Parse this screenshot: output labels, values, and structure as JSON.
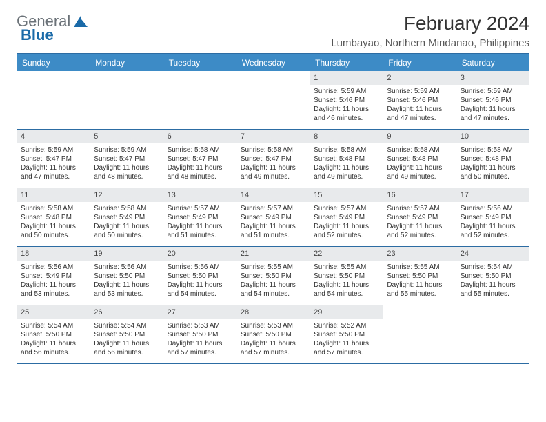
{
  "logo": {
    "text1": "General",
    "text2": "Blue",
    "icon_color": "#1a6aa8"
  },
  "title": "February 2024",
  "location": "Lumbayao, Northern Mindanao, Philippines",
  "header_bg": "#3d8bc6",
  "border_color": "#2c6ca3",
  "date_bg": "#e8eaec",
  "day_names": [
    "Sunday",
    "Monday",
    "Tuesday",
    "Wednesday",
    "Thursday",
    "Friday",
    "Saturday"
  ],
  "weeks": [
    [
      {
        "day": "",
        "lines": []
      },
      {
        "day": "",
        "lines": []
      },
      {
        "day": "",
        "lines": []
      },
      {
        "day": "",
        "lines": []
      },
      {
        "day": "1",
        "lines": [
          "Sunrise: 5:59 AM",
          "Sunset: 5:46 PM",
          "Daylight: 11 hours and 46 minutes."
        ]
      },
      {
        "day": "2",
        "lines": [
          "Sunrise: 5:59 AM",
          "Sunset: 5:46 PM",
          "Daylight: 11 hours and 47 minutes."
        ]
      },
      {
        "day": "3",
        "lines": [
          "Sunrise: 5:59 AM",
          "Sunset: 5:46 PM",
          "Daylight: 11 hours and 47 minutes."
        ]
      }
    ],
    [
      {
        "day": "4",
        "lines": [
          "Sunrise: 5:59 AM",
          "Sunset: 5:47 PM",
          "Daylight: 11 hours and 47 minutes."
        ]
      },
      {
        "day": "5",
        "lines": [
          "Sunrise: 5:59 AM",
          "Sunset: 5:47 PM",
          "Daylight: 11 hours and 48 minutes."
        ]
      },
      {
        "day": "6",
        "lines": [
          "Sunrise: 5:58 AM",
          "Sunset: 5:47 PM",
          "Daylight: 11 hours and 48 minutes."
        ]
      },
      {
        "day": "7",
        "lines": [
          "Sunrise: 5:58 AM",
          "Sunset: 5:47 PM",
          "Daylight: 11 hours and 49 minutes."
        ]
      },
      {
        "day": "8",
        "lines": [
          "Sunrise: 5:58 AM",
          "Sunset: 5:48 PM",
          "Daylight: 11 hours and 49 minutes."
        ]
      },
      {
        "day": "9",
        "lines": [
          "Sunrise: 5:58 AM",
          "Sunset: 5:48 PM",
          "Daylight: 11 hours and 49 minutes."
        ]
      },
      {
        "day": "10",
        "lines": [
          "Sunrise: 5:58 AM",
          "Sunset: 5:48 PM",
          "Daylight: 11 hours and 50 minutes."
        ]
      }
    ],
    [
      {
        "day": "11",
        "lines": [
          "Sunrise: 5:58 AM",
          "Sunset: 5:48 PM",
          "Daylight: 11 hours and 50 minutes."
        ]
      },
      {
        "day": "12",
        "lines": [
          "Sunrise: 5:58 AM",
          "Sunset: 5:49 PM",
          "Daylight: 11 hours and 50 minutes."
        ]
      },
      {
        "day": "13",
        "lines": [
          "Sunrise: 5:57 AM",
          "Sunset: 5:49 PM",
          "Daylight: 11 hours and 51 minutes."
        ]
      },
      {
        "day": "14",
        "lines": [
          "Sunrise: 5:57 AM",
          "Sunset: 5:49 PM",
          "Daylight: 11 hours and 51 minutes."
        ]
      },
      {
        "day": "15",
        "lines": [
          "Sunrise: 5:57 AM",
          "Sunset: 5:49 PM",
          "Daylight: 11 hours and 52 minutes."
        ]
      },
      {
        "day": "16",
        "lines": [
          "Sunrise: 5:57 AM",
          "Sunset: 5:49 PM",
          "Daylight: 11 hours and 52 minutes."
        ]
      },
      {
        "day": "17",
        "lines": [
          "Sunrise: 5:56 AM",
          "Sunset: 5:49 PM",
          "Daylight: 11 hours and 52 minutes."
        ]
      }
    ],
    [
      {
        "day": "18",
        "lines": [
          "Sunrise: 5:56 AM",
          "Sunset: 5:49 PM",
          "Daylight: 11 hours and 53 minutes."
        ]
      },
      {
        "day": "19",
        "lines": [
          "Sunrise: 5:56 AM",
          "Sunset: 5:50 PM",
          "Daylight: 11 hours and 53 minutes."
        ]
      },
      {
        "day": "20",
        "lines": [
          "Sunrise: 5:56 AM",
          "Sunset: 5:50 PM",
          "Daylight: 11 hours and 54 minutes."
        ]
      },
      {
        "day": "21",
        "lines": [
          "Sunrise: 5:55 AM",
          "Sunset: 5:50 PM",
          "Daylight: 11 hours and 54 minutes."
        ]
      },
      {
        "day": "22",
        "lines": [
          "Sunrise: 5:55 AM",
          "Sunset: 5:50 PM",
          "Daylight: 11 hours and 54 minutes."
        ]
      },
      {
        "day": "23",
        "lines": [
          "Sunrise: 5:55 AM",
          "Sunset: 5:50 PM",
          "Daylight: 11 hours and 55 minutes."
        ]
      },
      {
        "day": "24",
        "lines": [
          "Sunrise: 5:54 AM",
          "Sunset: 5:50 PM",
          "Daylight: 11 hours and 55 minutes."
        ]
      }
    ],
    [
      {
        "day": "25",
        "lines": [
          "Sunrise: 5:54 AM",
          "Sunset: 5:50 PM",
          "Daylight: 11 hours and 56 minutes."
        ]
      },
      {
        "day": "26",
        "lines": [
          "Sunrise: 5:54 AM",
          "Sunset: 5:50 PM",
          "Daylight: 11 hours and 56 minutes."
        ]
      },
      {
        "day": "27",
        "lines": [
          "Sunrise: 5:53 AM",
          "Sunset: 5:50 PM",
          "Daylight: 11 hours and 57 minutes."
        ]
      },
      {
        "day": "28",
        "lines": [
          "Sunrise: 5:53 AM",
          "Sunset: 5:50 PM",
          "Daylight: 11 hours and 57 minutes."
        ]
      },
      {
        "day": "29",
        "lines": [
          "Sunrise: 5:52 AM",
          "Sunset: 5:50 PM",
          "Daylight: 11 hours and 57 minutes."
        ]
      },
      {
        "day": "",
        "lines": []
      },
      {
        "day": "",
        "lines": []
      }
    ]
  ]
}
